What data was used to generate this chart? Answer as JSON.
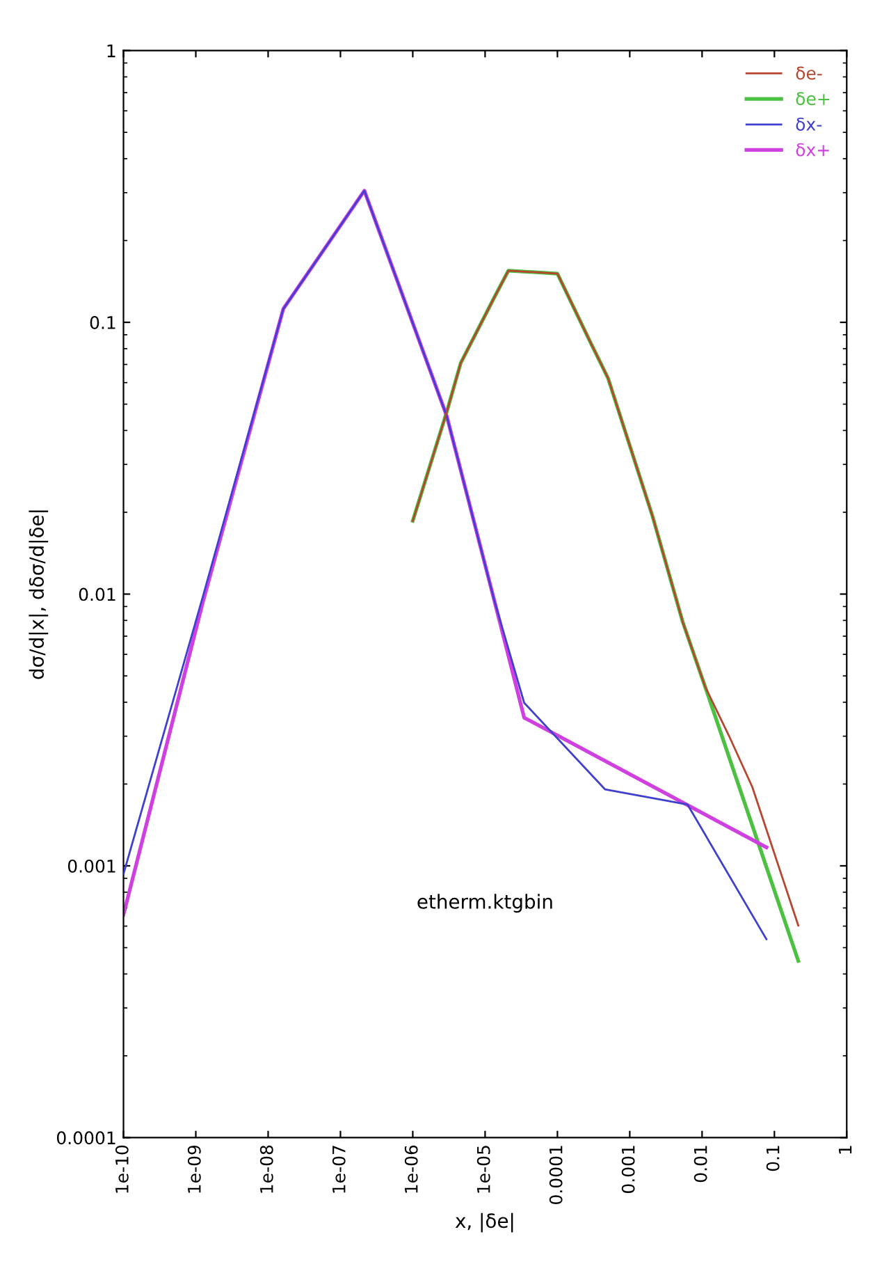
{
  "chart_data": {
    "type": "line",
    "title": "etherm.ktgbin",
    "xlabel": "x, |δe|",
    "ylabel": "dσ/d|x|, dδσ/d|δe|",
    "log": "xy",
    "grid": false,
    "legend": "top right",
    "line_style": "solid",
    "marker": "none",
    "xlim": [
      1e-10,
      1
    ],
    "xticks": [
      {
        "value": 1e-10,
        "label": "1e-10"
      },
      {
        "value": 1e-09,
        "label": "1e-09"
      },
      {
        "value": 1e-08,
        "label": "1e-08"
      },
      {
        "value": 1e-07,
        "label": "1e-07"
      },
      {
        "value": 1e-06,
        "label": "1e-06"
      },
      {
        "value": 1e-05,
        "label": "1e-05"
      },
      {
        "value": 0.0001,
        "label": "0.0001"
      },
      {
        "value": 0.001,
        "label": "0.001"
      },
      {
        "value": 0.01,
        "label": "0.01"
      },
      {
        "value": 0.1,
        "label": "0.1"
      },
      1
    ],
    "ylim": [
      0.0001,
      1
    ],
    "yticks": [
      {
        "value": 0.0001,
        "label": "0.0001"
      },
      {
        "value": 0.001,
        "label": "0.001"
      },
      {
        "value": 0.01,
        "label": "0.01"
      },
      {
        "value": 0.1,
        "label": "0.1"
      },
      1
    ],
    "series": [
      {
        "name": "δe-",
        "color": "#b8452f",
        "x": [
          1e-06,
          2.95e-06,
          4.6e-06,
          1.33e-05,
          2.1e-05,
          0.0001,
          0.00029,
          0.0005,
          0.00207,
          0.0054,
          0.011,
          0.0234,
          0.0495,
          0.214
        ],
        "values": [
          0.0186,
          0.0468,
          0.0708,
          0.123,
          0.155,
          0.151,
          0.0838,
          0.0624,
          0.0193,
          0.0079,
          0.00457,
          0.00302,
          0.00195,
          0.000603
        ]
      },
      {
        "name": "δe+",
        "color": "#4cc040",
        "x": [
          1e-06,
          2.95e-06,
          4.6e-06,
          1.33e-05,
          2.1e-05,
          0.0001,
          0.00029,
          0.0005,
          0.00207,
          0.0054,
          0.011,
          0.214
        ],
        "values": [
          0.0186,
          0.0468,
          0.0708,
          0.123,
          0.155,
          0.151,
          0.0838,
          0.0624,
          0.0193,
          0.0079,
          0.00457,
          0.000447
        ]
      },
      {
        "name": "δx-",
        "color": "#4040d0",
        "x": [
          1e-10,
          1.25e-09,
          1.62e-08,
          2.14e-07,
          2.95e-06,
          1.33e-05,
          3.47e-05,
          0.000457,
          0.0063,
          0.0776
        ],
        "values": [
          0.000933,
          0.00977,
          0.112,
          0.305,
          0.0452,
          0.00955,
          0.00398,
          0.00191,
          0.00168,
          0.000537
        ]
      },
      {
        "name": "δx+",
        "color": "#d040e0",
        "x": [
          1e-10,
          1.25e-09,
          1.62e-08,
          2.14e-07,
          2.95e-06,
          1.33e-05,
          3.47e-05,
          0.0776
        ],
        "values": [
          0.000661,
          0.00933,
          0.112,
          0.305,
          0.0452,
          0.00955,
          0.00351,
          0.00117
        ]
      }
    ]
  }
}
